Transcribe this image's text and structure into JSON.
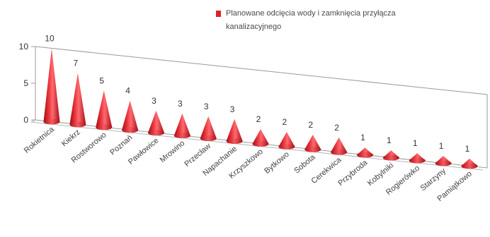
{
  "chart_data": {
    "type": "bar",
    "style": "3d-cone",
    "categories": [
      "Rokietnica",
      "Kiekrz",
      "Rostworowo",
      "Poznań",
      "Pawłowice",
      "Mrowino",
      "Przecław",
      "Napachanie",
      "Krzyszkowo",
      "Bytkowo",
      "Sobota",
      "Cerekwica",
      "Przybroda",
      "Kobylniki",
      "Rogierówko",
      "Starzyny",
      "Pamiątkowo"
    ],
    "series": [
      {
        "name": "Planowane odcięcia wody i zamknięcia przyłącza kanalizacyjnego",
        "values": [
          10,
          7,
          5,
          4,
          3,
          3,
          3,
          3,
          2,
          2,
          2,
          2,
          1,
          1,
          1,
          1,
          1
        ],
        "color": "#e0202a"
      }
    ],
    "title": "",
    "xlabel": "",
    "ylabel": "",
    "ylim": [
      0,
      10
    ],
    "yticks": [
      0,
      5,
      10
    ],
    "grid": false,
    "legend_position": "top-right",
    "data_labels": true
  }
}
